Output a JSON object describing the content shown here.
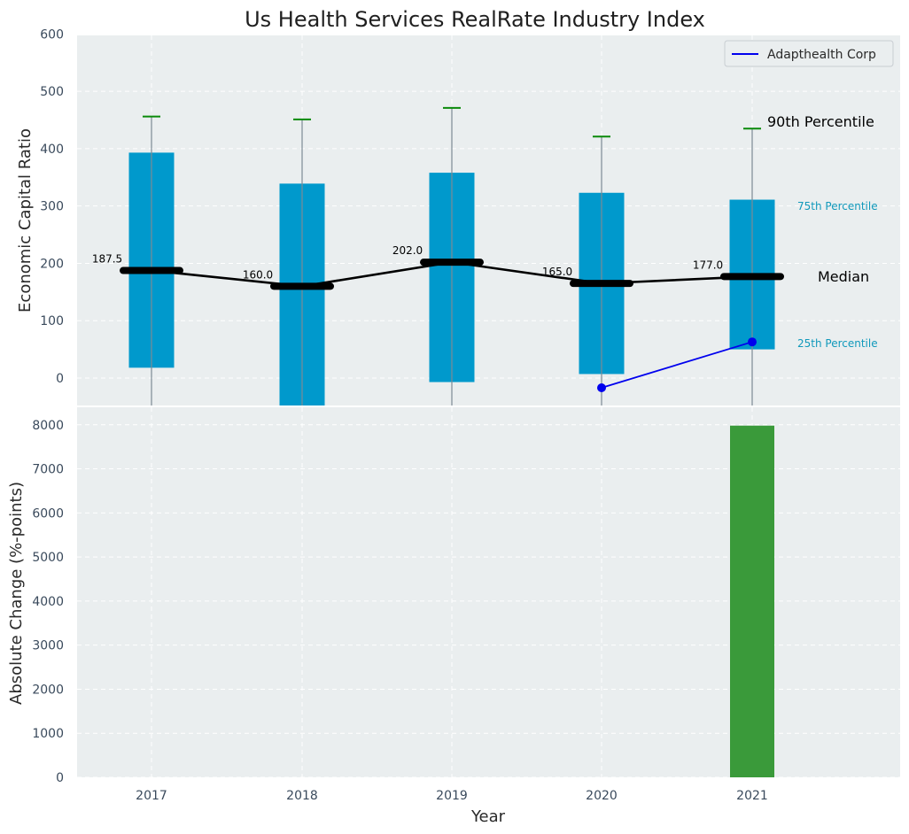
{
  "chart_data": [
    {
      "type": "box",
      "title": "Us Health Services RealRate Industry Index",
      "ylabel": "Economic Capital Ratio",
      "ylim": [
        -50,
        600
      ],
      "yticks": [
        "0",
        "100",
        "200",
        "300",
        "400",
        "500",
        "600"
      ],
      "ytick_values": [
        0,
        100,
        200,
        300,
        400,
        500,
        600
      ],
      "categories": [
        "2017",
        "2018",
        "2019",
        "2020",
        "2021"
      ],
      "p25": [
        18,
        -50,
        -7,
        7,
        50
      ],
      "p75": [
        393,
        339,
        358,
        323,
        311
      ],
      "p90": [
        456,
        451,
        471,
        421,
        435
      ],
      "median": [
        187.5,
        160.0,
        202.0,
        165.0,
        177.0
      ],
      "median_labels": [
        "187.5",
        "160.0",
        "202.0",
        "165.0",
        "177.0"
      ],
      "series": [
        {
          "name": "Adapthealth Corp",
          "x": [
            "2020",
            "2021"
          ],
          "values": [
            -17,
            63
          ],
          "color": "#0000ee"
        }
      ],
      "annotations": {
        "p90": "90th Percentile",
        "p75": "75th Percentile",
        "median": "Median",
        "p25": "25th Percentile"
      },
      "legend": "top-right",
      "grid": true
    },
    {
      "type": "bar",
      "xlabel": "Year",
      "ylabel": "Absolute Change (%-points)",
      "ylim": [
        0,
        8400
      ],
      "yticks": [
        "0",
        "1000",
        "2000",
        "3000",
        "4000",
        "5000",
        "6000",
        "7000",
        "8000"
      ],
      "ytick_values": [
        0,
        1000,
        2000,
        3000,
        4000,
        5000,
        6000,
        7000,
        8000
      ],
      "categories": [
        "2017",
        "2018",
        "2019",
        "2020",
        "2021"
      ],
      "values": [
        null,
        null,
        null,
        null,
        7980
      ],
      "color": "#3a9a3a",
      "grid": true
    }
  ]
}
